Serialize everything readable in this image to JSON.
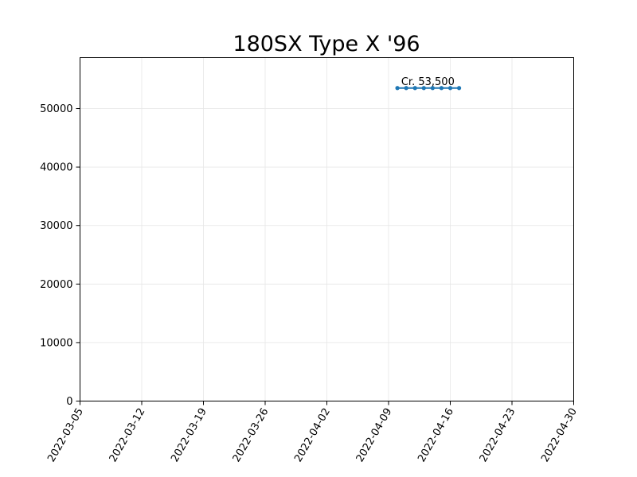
{
  "chart_data": {
    "type": "line",
    "title": "180SX Type X '96",
    "xlabel": "",
    "ylabel": "",
    "x_axis_type": "date",
    "xlim": [
      "2022-03-05",
      "2022-04-30"
    ],
    "ylim": [
      0,
      58700
    ],
    "x_ticks": [
      "2022-03-05",
      "2022-03-12",
      "2022-03-19",
      "2022-03-26",
      "2022-04-02",
      "2022-04-09",
      "2022-04-16",
      "2022-04-23",
      "2022-04-30"
    ],
    "y_ticks": [
      0,
      10000,
      20000,
      30000,
      40000,
      50000
    ],
    "y_tick_labels": [
      "0",
      "10000",
      "20000",
      "30000",
      "40000",
      "50000"
    ],
    "grid": true,
    "series": [
      {
        "color": "#1f77b4",
        "marker": "dot",
        "x": [
          "2022-04-10",
          "2022-04-11",
          "2022-04-12",
          "2022-04-13",
          "2022-04-14",
          "2022-04-15",
          "2022-04-16",
          "2022-04-17"
        ],
        "y": [
          53500,
          53500,
          53500,
          53500,
          53500,
          53500,
          53500,
          53500
        ]
      }
    ],
    "annotations": [
      {
        "text": "Cr. 53,500",
        "x": "2022-04-14",
        "y": 53500
      }
    ]
  }
}
